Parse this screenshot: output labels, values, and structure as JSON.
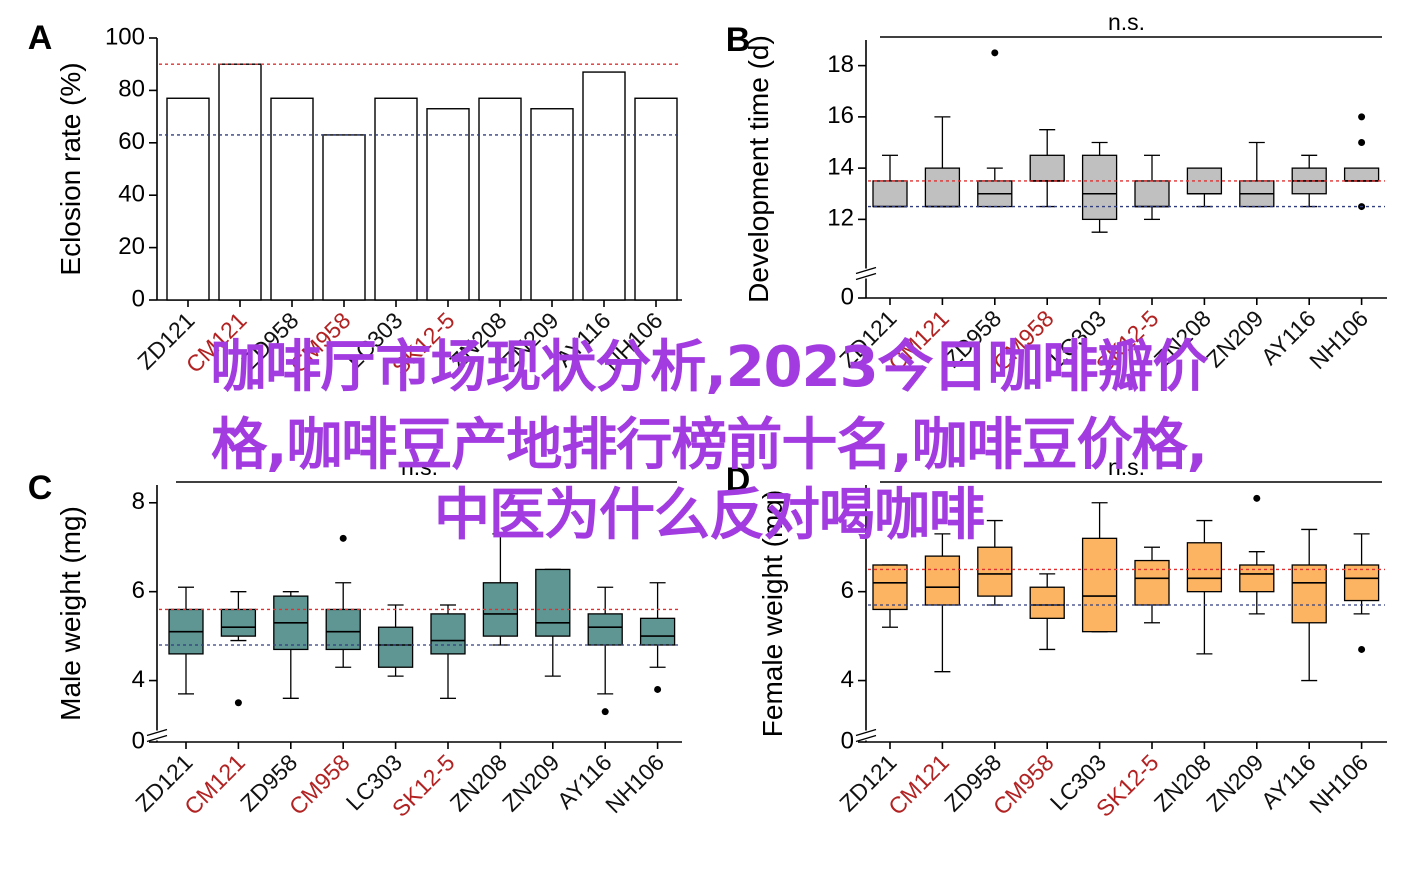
{
  "overlay": {
    "line1": "咖啡厅市场现状分析,2023今日咖啡瓣价",
    "line2": "格,咖啡豆产地排行榜前十名,咖啡豆价格,",
    "line3": "中医为什么反对喝咖啡"
  },
  "colors": {
    "highlight": "#b22222",
    "normal": "#111111",
    "boxB": "#c0c0c0",
    "boxC": "#5f9693",
    "boxD": "#fdb462",
    "refRed": "#e03030",
    "refBlue": "#303e80"
  },
  "chart_data": [
    {
      "panel": "A",
      "type": "bar",
      "ylabel": "Eclosion rate (%)",
      "ylim": [
        0,
        100
      ],
      "yticks": [
        0,
        20,
        40,
        60,
        80,
        100
      ],
      "categories": [
        "ZD121",
        "CM121",
        "ZD958",
        "CM958",
        "LC303",
        "SK12-5",
        "ZN208",
        "ZN209",
        "AY116",
        "NH106"
      ],
      "highlight": [
        false,
        true,
        false,
        true,
        false,
        true,
        false,
        false,
        false,
        false
      ],
      "values": [
        77,
        90,
        77,
        63,
        77,
        73,
        77,
        73,
        87,
        77
      ],
      "ref_lines": [
        {
          "y": 90,
          "color": "red"
        },
        {
          "y": 63,
          "color": "blue"
        }
      ]
    },
    {
      "panel": "B",
      "type": "box",
      "ylabel": "Development time (d)",
      "ylim": [
        11,
        19
      ],
      "yticks": [
        12,
        14,
        16,
        18
      ],
      "axis_break": true,
      "zero_label": "0",
      "annotation": "n.s.",
      "categories": [
        "ZD121",
        "CM121",
        "ZD958",
        "CM958",
        "LC303",
        "SK12-5",
        "ZN208",
        "ZN209",
        "AY116",
        "NH106"
      ],
      "highlight": [
        false,
        true,
        false,
        true,
        false,
        true,
        false,
        false,
        false,
        false
      ],
      "boxes": [
        {
          "whislo": 12.5,
          "q1": 12.5,
          "med": 12.5,
          "q3": 13.5,
          "whishi": 14.5,
          "fliers": []
        },
        {
          "whislo": 12.5,
          "q1": 12.5,
          "med": 12.5,
          "q3": 14.0,
          "whishi": 16.0,
          "fliers": []
        },
        {
          "whislo": 12.5,
          "q1": 12.5,
          "med": 13.0,
          "q3": 13.5,
          "whishi": 14.0,
          "fliers": [
            18.5
          ]
        },
        {
          "whislo": 12.5,
          "q1": 13.5,
          "med": 13.5,
          "q3": 14.5,
          "whishi": 15.5,
          "fliers": []
        },
        {
          "whislo": 11.5,
          "q1": 12.0,
          "med": 13.0,
          "q3": 14.5,
          "whishi": 15.0,
          "fliers": []
        },
        {
          "whislo": 12.0,
          "q1": 12.5,
          "med": 12.5,
          "q3": 13.5,
          "whishi": 14.5,
          "fliers": []
        },
        {
          "whislo": 12.5,
          "q1": 13.0,
          "med": 13.0,
          "q3": 14.0,
          "whishi": 14.0,
          "fliers": []
        },
        {
          "whislo": 12.5,
          "q1": 12.5,
          "med": 13.0,
          "q3": 13.5,
          "whishi": 15.0,
          "fliers": []
        },
        {
          "whislo": 12.5,
          "q1": 13.0,
          "med": 13.5,
          "q3": 14.0,
          "whishi": 14.5,
          "fliers": []
        },
        {
          "whislo": 13.5,
          "q1": 13.5,
          "med": 13.5,
          "q3": 14.0,
          "whishi": 14.0,
          "fliers": [
            16.0,
            15.0,
            12.5
          ]
        }
      ],
      "ref_lines": [
        {
          "y": 13.5,
          "color": "red"
        },
        {
          "y": 12.5,
          "color": "blue"
        }
      ]
    },
    {
      "panel": "C",
      "type": "box",
      "ylabel": "Male weight (mg)",
      "ylim": [
        3,
        8.4
      ],
      "yticks": [
        4,
        6,
        8
      ],
      "axis_break": true,
      "zero_label": "0",
      "annotation": "n.s.",
      "categories": [
        "ZD121",
        "CM121",
        "ZD958",
        "CM958",
        "LC303",
        "SK12-5",
        "ZN208",
        "ZN209",
        "AY116",
        "NH106"
      ],
      "highlight": [
        false,
        true,
        false,
        true,
        false,
        true,
        false,
        false,
        false,
        false
      ],
      "boxes": [
        {
          "whislo": 3.7,
          "q1": 4.6,
          "med": 5.1,
          "q3": 5.6,
          "whishi": 6.1,
          "fliers": []
        },
        {
          "whislo": 4.9,
          "q1": 5.0,
          "med": 5.2,
          "q3": 5.6,
          "whishi": 6.0,
          "fliers": [
            3.5
          ]
        },
        {
          "whislo": 3.6,
          "q1": 4.7,
          "med": 5.3,
          "q3": 5.9,
          "whishi": 6.0,
          "fliers": []
        },
        {
          "whislo": 4.3,
          "q1": 4.7,
          "med": 5.1,
          "q3": 5.6,
          "whishi": 6.2,
          "fliers": [
            7.2
          ]
        },
        {
          "whislo": 4.1,
          "q1": 4.3,
          "med": 4.8,
          "q3": 5.2,
          "whishi": 5.7,
          "fliers": []
        },
        {
          "whislo": 3.6,
          "q1": 4.6,
          "med": 4.9,
          "q3": 5.5,
          "whishi": 5.7,
          "fliers": []
        },
        {
          "whislo": 4.8,
          "q1": 5.0,
          "med": 5.5,
          "q3": 6.2,
          "whishi": 7.3,
          "fliers": []
        },
        {
          "whislo": 4.1,
          "q1": 5.0,
          "med": 5.3,
          "q3": 6.5,
          "whishi": 6.5,
          "fliers": []
        },
        {
          "whislo": 3.7,
          "q1": 4.8,
          "med": 5.2,
          "q3": 5.5,
          "whishi": 6.1,
          "fliers": [
            3.3
          ]
        },
        {
          "whislo": 4.3,
          "q1": 4.8,
          "med": 5.0,
          "q3": 5.4,
          "whishi": 6.2,
          "fliers": [
            3.8
          ]
        }
      ],
      "ref_lines": [
        {
          "y": 5.6,
          "color": "red"
        },
        {
          "y": 4.8,
          "color": "blue"
        }
      ]
    },
    {
      "panel": "D",
      "type": "box",
      "ylabel": "Female weight (mg)",
      "ylim": [
        3,
        8.4
      ],
      "yticks": [
        4,
        6
      ],
      "axis_break": true,
      "zero_label": "0",
      "annotation": "n.s.",
      "categories": [
        "ZD121",
        "CM121",
        "ZD958",
        "CM958",
        "LC303",
        "SK12-5",
        "ZN208",
        "ZN209",
        "AY116",
        "NH106"
      ],
      "highlight": [
        false,
        true,
        false,
        true,
        false,
        true,
        false,
        false,
        false,
        false
      ],
      "boxes": [
        {
          "whislo": 5.2,
          "q1": 5.6,
          "med": 6.2,
          "q3": 6.6,
          "whishi": 6.6,
          "fliers": []
        },
        {
          "whislo": 4.2,
          "q1": 5.7,
          "med": 6.1,
          "q3": 6.8,
          "whishi": 7.3,
          "fliers": []
        },
        {
          "whislo": 5.7,
          "q1": 5.9,
          "med": 6.4,
          "q3": 7.0,
          "whishi": 7.6,
          "fliers": []
        },
        {
          "whislo": 4.7,
          "q1": 5.4,
          "med": 5.7,
          "q3": 6.1,
          "whishi": 6.4,
          "fliers": []
        },
        {
          "whislo": 5.1,
          "q1": 5.1,
          "med": 5.9,
          "q3": 7.2,
          "whishi": 8.0,
          "fliers": []
        },
        {
          "whislo": 5.3,
          "q1": 5.7,
          "med": 6.3,
          "q3": 6.7,
          "whishi": 7.0,
          "fliers": []
        },
        {
          "whislo": 4.6,
          "q1": 6.0,
          "med": 6.3,
          "q3": 7.1,
          "whishi": 7.6,
          "fliers": []
        },
        {
          "whislo": 5.5,
          "q1": 6.0,
          "med": 6.4,
          "q3": 6.6,
          "whishi": 6.9,
          "fliers": [
            8.1
          ]
        },
        {
          "whislo": 4.0,
          "q1": 5.3,
          "med": 6.2,
          "q3": 6.6,
          "whishi": 7.4,
          "fliers": []
        },
        {
          "whislo": 5.5,
          "q1": 5.8,
          "med": 6.3,
          "q3": 6.6,
          "whishi": 7.3,
          "fliers": [
            4.7
          ]
        }
      ],
      "ref_lines": [
        {
          "y": 6.5,
          "color": "red"
        },
        {
          "y": 5.7,
          "color": "blue"
        }
      ]
    }
  ]
}
